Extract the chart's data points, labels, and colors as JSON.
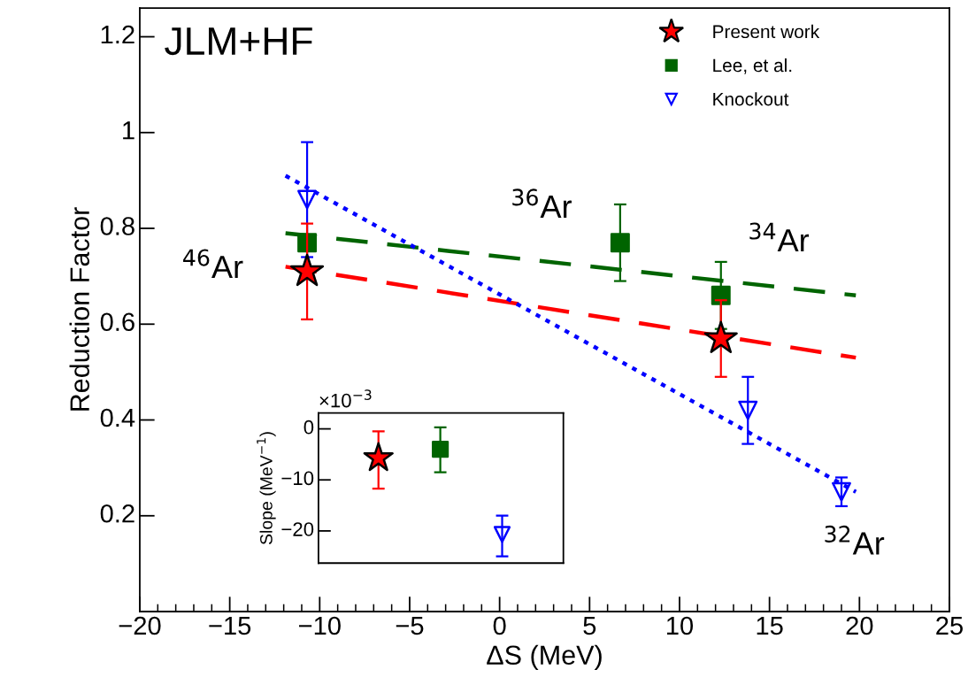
{
  "chart_data": [
    {
      "type": "scatter",
      "xlabel": "ΔS (MeV)",
      "ylabel": "Reduction Factor",
      "xlim": [
        -20,
        25
      ],
      "ylim": [
        0,
        1.26
      ],
      "xticks": [
        {
          "value": -20,
          "label": "−20"
        },
        {
          "value": -15,
          "label": "−15"
        },
        {
          "value": -10,
          "label": "−10"
        },
        {
          "value": -5,
          "label": "−5"
        },
        0,
        5,
        10,
        15,
        20,
        25
      ],
      "yticks": [
        0.2,
        0.4,
        0.6,
        0.8,
        1,
        1.2
      ],
      "legend": "top right",
      "grid": false,
      "series": [
        {
          "name": "Present work",
          "color": "#ff0000",
          "marker": "star",
          "x": [
            -10.7,
            12.3
          ],
          "values": [
            0.71,
            0.57
          ],
          "errors": [
            [
              0.61,
              0.81
            ],
            [
              0.49,
              0.65
            ]
          ]
        },
        {
          "name": "Lee, et al.",
          "color": "#006400",
          "marker": "square",
          "x": [
            -10.7,
            6.7,
            12.3
          ],
          "values": [
            0.77,
            0.77,
            0.66
          ],
          "errors": [
            null,
            [
              0.69,
              0.85
            ],
            [
              0.59,
              0.73
            ]
          ]
        },
        {
          "name": "Knockout",
          "color": "#0000ff",
          "marker": "triangle",
          "x": [
            -10.7,
            13.8,
            19.0
          ],
          "values": [
            0.86,
            0.42,
            0.25
          ],
          "errors": [
            [
              0.74,
              0.98
            ],
            [
              0.35,
              0.49
            ],
            [
              0.22,
              0.28
            ]
          ]
        },
        {
          "type": "line",
          "color": "#ff0000",
          "line_style": "dashed",
          "x": [
            -11.9,
            19.8
          ],
          "values": [
            0.72,
            0.53
          ]
        },
        {
          "type": "line",
          "color": "#006400",
          "line_style": "dashed",
          "x": [
            -11.9,
            19.8
          ],
          "values": [
            0.79,
            0.66
          ]
        },
        {
          "type": "line",
          "color": "#0000ff",
          "line_style": "dotted",
          "x": [
            -11.9,
            19.8
          ],
          "values": [
            0.91,
            0.25
          ]
        }
      ],
      "annotations": [
        "JLM+HF",
        "$^{46}$Ar",
        "$^{36}$Ar",
        "$^{34}$Ar",
        "$^{32}$Ar"
      ]
    },
    {
      "type": "scatter",
      "ylabel": "Slope (MeV$^{−1}$)",
      "categories": [
        null,
        null,
        null
      ],
      "ylim": [
        -26.3,
        3.1
      ],
      "yticks": [
        0,
        {
          "value": -10,
          "label": "−10"
        },
        {
          "value": -20,
          "label": "−20"
        }
      ],
      "grid": false,
      "legend": false,
      "series": [
        {
          "color": "#ff0000",
          "marker": "star",
          "values": [
            -5.7,
            null,
            null
          ],
          "errors": [
            [
              -11.7,
              -0.5
            ],
            null,
            null
          ]
        },
        {
          "color": "#006400",
          "marker": "square",
          "values": [
            null,
            -4.0,
            null
          ],
          "errors": [
            null,
            [
              -8.5,
              0.3
            ],
            null
          ]
        },
        {
          "color": "#0000ff",
          "marker": "triangle",
          "values": [
            null,
            null,
            -20.7
          ],
          "errors": [
            null,
            null,
            [
              -25.0,
              -17.0
            ]
          ]
        }
      ],
      "annotations": [
        "×10$^{−3}$"
      ]
    }
  ]
}
